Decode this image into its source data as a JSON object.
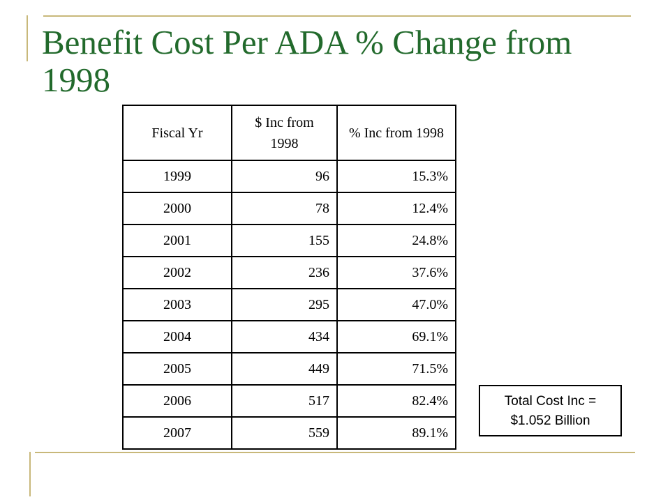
{
  "slide": {
    "title": "Benefit Cost Per ADA % Change from 1998",
    "table": {
      "headers": [
        "Fiscal Yr",
        "$ Inc from 1998",
        "% Inc from 1998"
      ],
      "rows": [
        [
          "1999",
          "96",
          "15.3%"
        ],
        [
          "2000",
          "78",
          "12.4%"
        ],
        [
          "2001",
          "155",
          "24.8%"
        ],
        [
          "2002",
          "236",
          "37.6%"
        ],
        [
          "2003",
          "295",
          "47.0%"
        ],
        [
          "2004",
          "434",
          "69.1%"
        ],
        [
          "2005",
          "449",
          "71.5%"
        ],
        [
          "2006",
          "517",
          "82.4%"
        ],
        [
          "2007",
          "559",
          "89.1%"
        ]
      ]
    },
    "note": {
      "line1": "Total Cost Inc =",
      "line2": "$1.052 Billion"
    }
  },
  "colors": {
    "title": "#226a2c",
    "accent_rule": "#c8b87a"
  }
}
